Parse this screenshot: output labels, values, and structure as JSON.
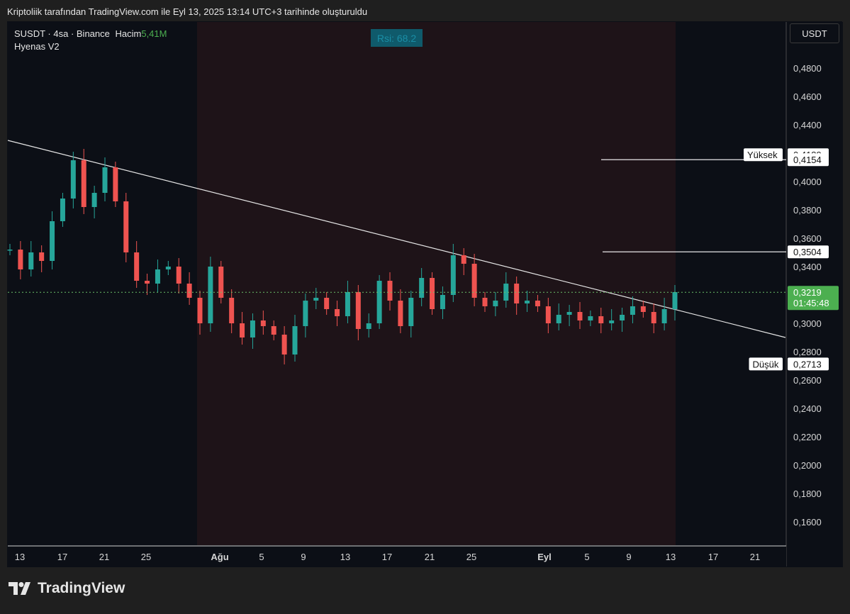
{
  "header": {
    "text": "Kriptoliik tarafından TradingView.com ile Eyl 13, 2025 13:14 UTC+3 tarihinde oluşturuldu"
  },
  "symbol": {
    "title": "SUSDT · 4sa · Binance",
    "volume_label": "Hacim",
    "volume_value": "5,41M",
    "indicator": "Hyenas V2"
  },
  "rsi_badge": "Rsi: 68.2",
  "currency": "USDT",
  "brand": "TradingView",
  "colors": {
    "up": "#26a69a",
    "down": "#ef5350",
    "pink_zone": "#1e1318",
    "dark_zone": "#0c0f16",
    "last_price_badge": "#4caf50"
  },
  "chart_data": {
    "type": "candlestick",
    "y_axis": {
      "unit": "USDT",
      "ticks": [
        "0,4800",
        "0,4600",
        "0,4400",
        "0,4000",
        "0,3800",
        "0,3600",
        "0,3400",
        "0,3000",
        "0,2800",
        "0,2600",
        "0,2400",
        "0,2200",
        "0,2000",
        "0,1800",
        "0,1600"
      ],
      "range": [
        0.145,
        0.49
      ]
    },
    "x_axis": {
      "ticks": [
        "13",
        "17",
        "21",
        "25",
        "Ağu",
        "5",
        "9",
        "13",
        "17",
        "21",
        "25",
        "Eyl",
        "5",
        "9",
        "13",
        "17",
        "21"
      ]
    },
    "price_labels": [
      {
        "prefix": "Yüksek",
        "value": "0,4189"
      },
      {
        "prefix": "",
        "value": "0,4154"
      },
      {
        "prefix": "",
        "value": "0,3504"
      },
      {
        "prefix": "Düşük",
        "value": "0,2713"
      }
    ],
    "last_price": {
      "value": "0,3219",
      "countdown": "01:45:48"
    },
    "price_series": [
      {
        "x": "Jul 12",
        "y": 0.352
      },
      {
        "x": "Jul 13",
        "y": 0.338
      },
      {
        "x": "Jul 14",
        "y": 0.35
      },
      {
        "x": "Jul 15",
        "y": 0.344
      },
      {
        "x": "Jul 16",
        "y": 0.372
      },
      {
        "x": "Jul 17",
        "y": 0.388
      },
      {
        "x": "Jul 18",
        "y": 0.415
      },
      {
        "x": "Jul 19",
        "y": 0.382
      },
      {
        "x": "Jul 20",
        "y": 0.392
      },
      {
        "x": "Jul 21",
        "y": 0.41
      },
      {
        "x": "Jul 22",
        "y": 0.386
      },
      {
        "x": "Jul 23",
        "y": 0.35
      },
      {
        "x": "Jul 24",
        "y": 0.33
      },
      {
        "x": "Jul 25",
        "y": 0.328
      },
      {
        "x": "Jul 26",
        "y": 0.338
      },
      {
        "x": "Jul 27",
        "y": 0.34
      },
      {
        "x": "Jul 28",
        "y": 0.328
      },
      {
        "x": "Jul 29",
        "y": 0.318
      },
      {
        "x": "Jul 30",
        "y": 0.3
      },
      {
        "x": "Jul 31",
        "y": 0.34
      },
      {
        "x": "Aug 1",
        "y": 0.318
      },
      {
        "x": "Aug 2",
        "y": 0.3
      },
      {
        "x": "Aug 3",
        "y": 0.29
      },
      {
        "x": "Aug 4",
        "y": 0.302
      },
      {
        "x": "Aug 5",
        "y": 0.298
      },
      {
        "x": "Aug 6",
        "y": 0.292
      },
      {
        "x": "Aug 7",
        "y": 0.278
      },
      {
        "x": "Aug 8",
        "y": 0.298
      },
      {
        "x": "Aug 9",
        "y": 0.316
      },
      {
        "x": "Aug 10",
        "y": 0.318
      },
      {
        "x": "Aug 11",
        "y": 0.31
      },
      {
        "x": "Aug 12",
        "y": 0.305
      },
      {
        "x": "Aug 13",
        "y": 0.322
      },
      {
        "x": "Aug 14",
        "y": 0.296
      },
      {
        "x": "Aug 15",
        "y": 0.3
      },
      {
        "x": "Aug 16",
        "y": 0.33
      },
      {
        "x": "Aug 17",
        "y": 0.316
      },
      {
        "x": "Aug 18",
        "y": 0.298
      },
      {
        "x": "Aug 19",
        "y": 0.318
      },
      {
        "x": "Aug 20",
        "y": 0.332
      },
      {
        "x": "Aug 21",
        "y": 0.31
      },
      {
        "x": "Aug 22",
        "y": 0.32
      },
      {
        "x": "Aug 23",
        "y": 0.348
      },
      {
        "x": "Aug 24",
        "y": 0.342
      },
      {
        "x": "Aug 25",
        "y": 0.318
      },
      {
        "x": "Aug 26",
        "y": 0.312
      },
      {
        "x": "Aug 27",
        "y": 0.316
      },
      {
        "x": "Aug 28",
        "y": 0.328
      },
      {
        "x": "Aug 29",
        "y": 0.314
      },
      {
        "x": "Aug 30",
        "y": 0.316
      },
      {
        "x": "Aug 31",
        "y": 0.312
      },
      {
        "x": "Sep 1",
        "y": 0.3
      },
      {
        "x": "Sep 2",
        "y": 0.306
      },
      {
        "x": "Sep 3",
        "y": 0.308
      },
      {
        "x": "Sep 4",
        "y": 0.302
      },
      {
        "x": "Sep 5",
        "y": 0.305
      },
      {
        "x": "Sep 6",
        "y": 0.3
      },
      {
        "x": "Sep 7",
        "y": 0.302
      },
      {
        "x": "Sep 8",
        "y": 0.306
      },
      {
        "x": "Sep 9",
        "y": 0.312
      },
      {
        "x": "Sep 10",
        "y": 0.308
      },
      {
        "x": "Sep 11",
        "y": 0.3
      },
      {
        "x": "Sep 12",
        "y": 0.31
      },
      {
        "x": "Sep 13",
        "y": 0.322
      }
    ]
  }
}
